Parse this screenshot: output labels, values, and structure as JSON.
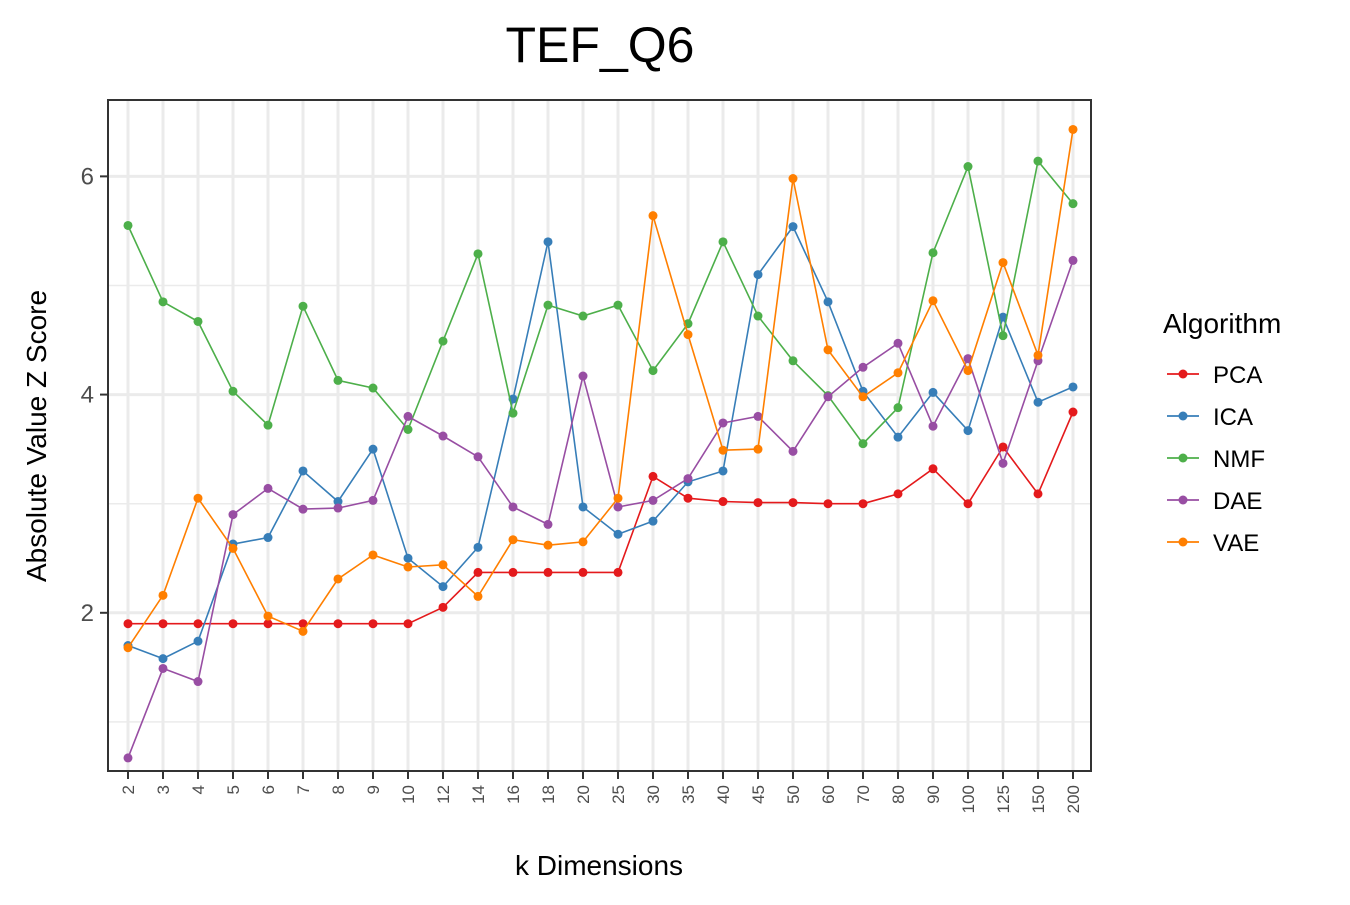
{
  "chart_data": {
    "type": "line",
    "title": "TEF_Q6",
    "xlabel": "k Dimensions",
    "ylabel": "Absolute Value Z Score",
    "categories": [
      "2",
      "3",
      "4",
      "5",
      "6",
      "7",
      "8",
      "9",
      "10",
      "12",
      "14",
      "16",
      "18",
      "20",
      "25",
      "30",
      "35",
      "40",
      "45",
      "50",
      "60",
      "70",
      "80",
      "90",
      "100",
      "125",
      "150",
      "200"
    ],
    "ylim": [
      0.55,
      6.7
    ],
    "yticks": [
      2,
      4,
      6
    ],
    "grid": true,
    "legend": {
      "title": "Algorithm",
      "position": "right"
    },
    "series": [
      {
        "name": "PCA",
        "color": "#e41a1c",
        "values": [
          1.9,
          1.9,
          1.9,
          1.9,
          1.9,
          1.9,
          1.9,
          1.9,
          1.9,
          2.05,
          2.37,
          2.37,
          2.37,
          2.37,
          2.37,
          3.25,
          3.05,
          3.02,
          3.01,
          3.01,
          3.0,
          3.0,
          3.09,
          3.32,
          3.0,
          3.52,
          3.09,
          3.84
        ]
      },
      {
        "name": "ICA",
        "color": "#377eb8",
        "values": [
          1.7,
          1.58,
          1.74,
          2.63,
          2.69,
          3.3,
          3.02,
          3.5,
          2.5,
          2.24,
          2.6,
          3.96,
          5.4,
          2.97,
          2.72,
          2.84,
          3.2,
          3.3,
          5.1,
          5.54,
          4.85,
          4.03,
          3.61,
          4.02,
          3.67,
          4.71,
          3.93,
          4.07
        ]
      },
      {
        "name": "NMF",
        "color": "#4daf4a",
        "values": [
          5.55,
          4.85,
          4.67,
          4.03,
          3.72,
          4.81,
          4.13,
          4.06,
          3.68,
          4.49,
          5.29,
          3.83,
          4.82,
          4.72,
          4.82,
          4.22,
          4.65,
          5.4,
          4.72,
          4.31,
          3.99,
          3.55,
          3.88,
          5.3,
          6.09,
          4.54,
          6.14,
          5.75
        ]
      },
      {
        "name": "DAE",
        "color": "#984ea3",
        "values": [
          0.67,
          1.49,
          1.37,
          2.9,
          3.14,
          2.95,
          2.96,
          3.03,
          3.8,
          3.62,
          3.43,
          2.97,
          2.81,
          4.17,
          2.97,
          3.03,
          3.23,
          3.74,
          3.8,
          3.48,
          3.98,
          4.25,
          4.47,
          3.71,
          4.33,
          3.37,
          4.31,
          5.23
        ]
      },
      {
        "name": "VAE",
        "color": "#ff7f00",
        "values": [
          1.68,
          2.16,
          3.05,
          2.59,
          1.97,
          1.83,
          2.31,
          2.53,
          2.42,
          2.44,
          2.15,
          2.67,
          2.62,
          2.65,
          3.05,
          5.64,
          4.55,
          3.49,
          3.5,
          5.98,
          4.41,
          3.98,
          4.2,
          4.86,
          4.22,
          5.21,
          4.36,
          6.43
        ]
      }
    ]
  }
}
